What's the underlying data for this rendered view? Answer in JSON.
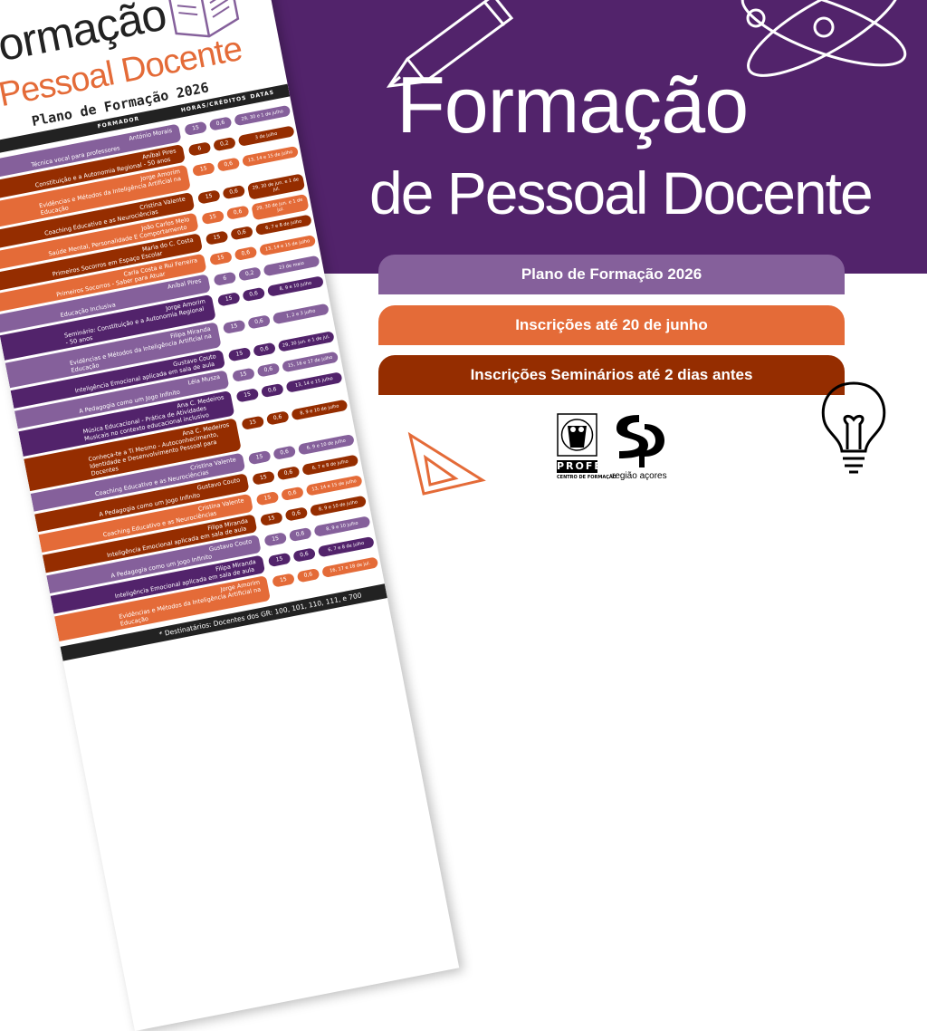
{
  "colors": {
    "purple_dark": "#52236b",
    "purple_light": "#85609b",
    "orange": "#e46b38",
    "rust": "#952d00"
  },
  "headline": {
    "line1": "Formação",
    "line2": "de Pessoal Docente"
  },
  "banners": [
    {
      "text": "Plano de Formação 2026",
      "color": "#85609b"
    },
    {
      "text": "Inscrições até 20 de junho",
      "color": "#e46b38"
    },
    {
      "text": "Inscrições Seminários até 2 dias antes",
      "color": "#952d00"
    }
  ],
  "logos": {
    "profe": "PROFE",
    "profe_sub": "CENTRO DE FORMAÇÃO",
    "sp_caption": "região açores"
  },
  "poster": {
    "title1": "Formação",
    "title2": "Pessoal Docente",
    "subtitle": "Plano de Formação 2026",
    "header": {
      "trainer": "FORMADOR",
      "hours": "HORAS/CRÉDITOS",
      "dates": "DATAS"
    },
    "rows": [
      {
        "title": "Técnica vocal para professores",
        "trainer": "António Morais",
        "hours": "15",
        "credits": "0,6",
        "dates": "29, 30 e 1 de julho",
        "color": "#85609b"
      },
      {
        "title": "Constituição e a Autonomia Regional - 50 anos",
        "trainer": "Aníbal Pires",
        "hours": "6",
        "credits": "0,2",
        "dates": "3 de julho",
        "color": "#952d00"
      },
      {
        "title": "Evidências e Métodos da Inteligência Artificial na Educação",
        "trainer": "Jorge Amorim",
        "hours": "15",
        "credits": "0,6",
        "dates": "13, 14 e 15 de julho",
        "color": "#e46b38"
      },
      {
        "title": "Coaching Educativo e as Neurociências",
        "trainer": "Cristina Valente",
        "hours": "15",
        "credits": "0,6",
        "dates": "29, 30 de jun. e 1 de jul.",
        "color": "#952d00"
      },
      {
        "title": "Saúde Mental, Personalidade E Comportamento",
        "trainer": "João Carlos Melo",
        "hours": "15",
        "credits": "0,6",
        "dates": "29, 30 de jun. e 1 de jul.",
        "color": "#e46b38"
      },
      {
        "title": "Primeiros Socorros em Espaço Escolar",
        "trainer": "Maria do C. Costa",
        "hours": "15",
        "credits": "0,6",
        "dates": "6, 7 e 8 de julho",
        "color": "#952d00"
      },
      {
        "title": "Primeiros Socorros - Saber para Atuar",
        "trainer": "Carla Costa e Rui Ferreira",
        "hours": "15",
        "credits": "0,6",
        "dates": "13, 14 e 15 de julho",
        "color": "#e46b38"
      },
      {
        "title": "Educação Inclusiva",
        "trainer": "Aníbal Pires",
        "hours": "6",
        "credits": "0,2",
        "dates": "23 de maio",
        "color": "#85609b"
      },
      {
        "title": "Seminário: Constituição e a Autonomia Regional - 50 anos",
        "trainer": "Jorge Amorim",
        "hours": "15",
        "credits": "0,6",
        "dates": "8, 9 e 10 julho",
        "color": "#52236b"
      },
      {
        "title": "Evidências e Métodos da Inteligência Artificial na Educação",
        "trainer": "Filipa Miranda",
        "hours": "15",
        "credits": "0,6",
        "dates": "1, 2 e 3 julho",
        "color": "#85609b"
      },
      {
        "title": "Inteligência Emocional aplicada em sala de aula",
        "trainer": "Gustavo Couto",
        "hours": "15",
        "credits": "0,6",
        "dates": "29, 30 jun. e 1 de jul.",
        "color": "#52236b"
      },
      {
        "title": "A Pedagogia como um Jogo Infinito",
        "trainer": "Léia Musza",
        "hours": "15",
        "credits": "0,6",
        "dates": "15, 16 e 17 de julho",
        "color": "#85609b"
      },
      {
        "title": "Música Educacional - Prática de Atividades Musicais no contexto educacional inclusivo",
        "trainer": "Ana C. Medeiros",
        "hours": "15",
        "credits": "0,6",
        "dates": "13, 14 e 15 julho",
        "color": "#52236b"
      },
      {
        "title": "Conheça-te a Ti Mesmo - Autoconhecimento, Identidade e Desenvolvimento Pessoal para Docentes",
        "trainer": "Ana C. Medeiros",
        "hours": "15",
        "credits": "0,6",
        "dates": "8, 9 e 10 de julho",
        "color": "#952d00"
      },
      {
        "title": "Coaching Educativo e as Neurociências",
        "trainer": "Cristina Valente",
        "hours": "15",
        "credits": "0,6",
        "dates": "6, 9 e 10 de julho",
        "color": "#85609b"
      },
      {
        "title": "A Pedagogia como um Jogo Infinito",
        "trainer": "Gustavo Couto",
        "hours": "15",
        "credits": "0,6",
        "dates": "6, 7 e 8 de julho",
        "color": "#952d00"
      },
      {
        "title": "Coaching Educativo e as Neurociências",
        "trainer": "Cristina Valente",
        "hours": "15",
        "credits": "0,6",
        "dates": "13, 14 e 15 de julho",
        "color": "#e46b38"
      },
      {
        "title": "Inteligência Emocional aplicada em sala de aula",
        "trainer": "Filipa Miranda",
        "hours": "15",
        "credits": "0,6",
        "dates": "8, 9 e 10 de julho",
        "color": "#952d00"
      },
      {
        "title": "A Pedagogia como um Jogo Infinito",
        "trainer": "Gustavo Couto",
        "hours": "15",
        "credits": "0,6",
        "dates": "8, 9 e 10 julho",
        "color": "#85609b"
      },
      {
        "title": "Inteligência Emocional aplicada em sala de aula",
        "trainer": "Filipa Miranda",
        "hours": "15",
        "credits": "0,6",
        "dates": "6, 7 e 8 de julho",
        "color": "#52236b"
      },
      {
        "title": "Evidências e Métodos da Inteligência Artificial na Educação",
        "trainer": "Jorge Amorim",
        "hours": "15",
        "credits": "0,6",
        "dates": "16, 17 e 18 de jul.",
        "color": "#e46b38"
      }
    ],
    "footer": "* Destinatários: Docentes dos GR: 100, 101, 110, 111, e 700"
  }
}
